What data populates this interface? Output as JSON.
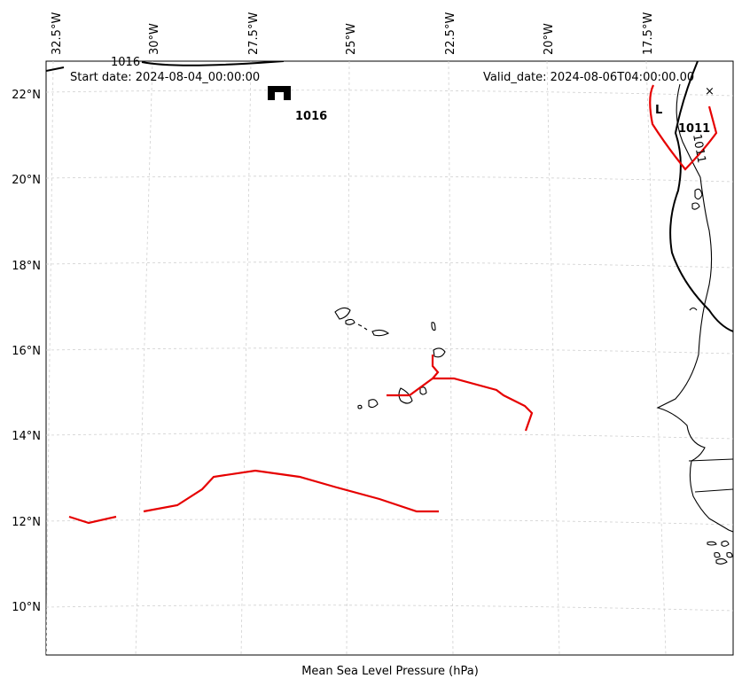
{
  "map": {
    "start_date_text": "Start date: 2024-08-04_00:00:00",
    "valid_date_text": "Valid_date: 2024-08-06T04:00:00.00",
    "xlabel": "Mean Sea Level Pressure (hPa)",
    "lon_ticks": [
      "32.5°W",
      "30°W",
      "27.5°W",
      "25°W",
      "22.5°W",
      "20°W",
      "17.5°W"
    ],
    "lat_ticks": [
      "22°N",
      "20°N",
      "18°N",
      "16°N",
      "14°N",
      "12°N",
      "10°N"
    ],
    "high_center": {
      "symbol": "H",
      "value": "1016"
    },
    "low_center": {
      "symbol": "L",
      "value": "1011"
    },
    "isobar_labels": [
      "1016",
      "1011"
    ],
    "marker_symbol": "×",
    "colors": {
      "isobar": "#000000",
      "track": "#e00000",
      "grid": "#cccccc",
      "coast": "#000000"
    }
  }
}
